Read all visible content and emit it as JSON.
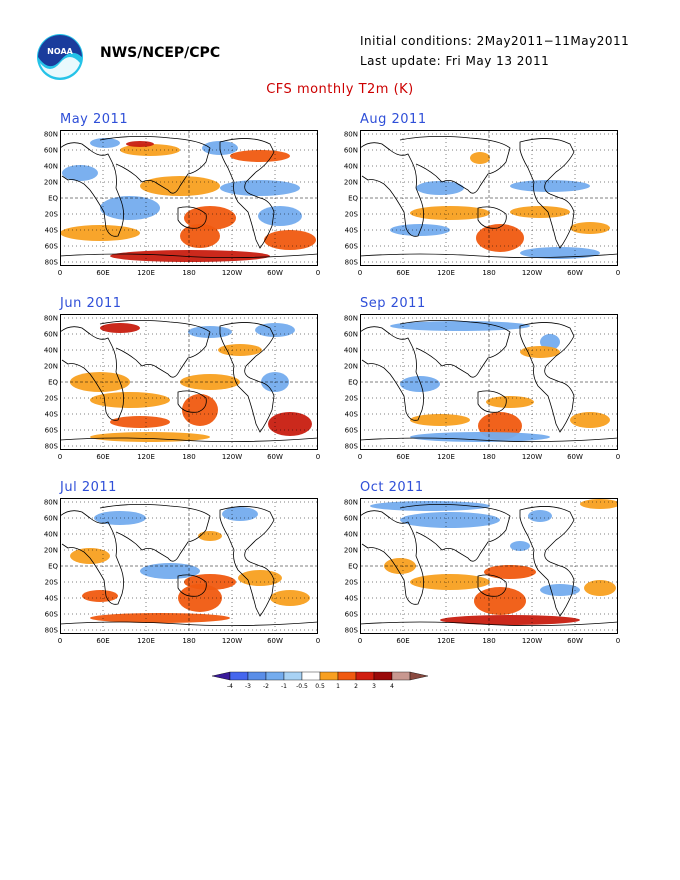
{
  "header": {
    "org": "NWS/NCEP/CPC",
    "initial_conditions": "Initial conditions: 2May2011−11May2011",
    "last_update": "Last update: Fri May 13 2011",
    "title": "CFS monthly T2m (K)"
  },
  "logo": {
    "icon": "noaa-logo-icon",
    "text": "NOAA"
  },
  "axes": {
    "lat_labels": [
      "80N",
      "60N",
      "40N",
      "20N",
      "EQ",
      "20S",
      "40S",
      "60S",
      "80S"
    ],
    "lon_labels": [
      "0",
      "60E",
      "120E",
      "180",
      "120W",
      "60W",
      "0"
    ]
  },
  "panels": [
    {
      "label": "May 2011"
    },
    {
      "label": "Aug 2011"
    },
    {
      "label": "Jun 2011"
    },
    {
      "label": "Sep 2011"
    },
    {
      "label": "Jul 2011"
    },
    {
      "label": "Oct 2011"
    }
  ],
  "colorbar": {
    "ticks": [
      "-4",
      "-3",
      "-2",
      "-1",
      "-0.5",
      "0.5",
      "1",
      "2",
      "3",
      "4"
    ],
    "colors": [
      "#3a1a9a",
      "#4466ee",
      "#5a8ee8",
      "#74acee",
      "#a8d2f4",
      "#ffffff",
      "#f8a020",
      "#f05a10",
      "#d01e10",
      "#9a0a0a",
      "#c89890",
      "#8a4a40"
    ]
  },
  "colors": {
    "warm": "#f8a020",
    "warm2": "#f05a10",
    "hot": "#c81e10",
    "cool": "#74acee",
    "cool2": "#4a8ae0",
    "title_red": "#cc0000",
    "label_blue": "#2f4fd8"
  }
}
